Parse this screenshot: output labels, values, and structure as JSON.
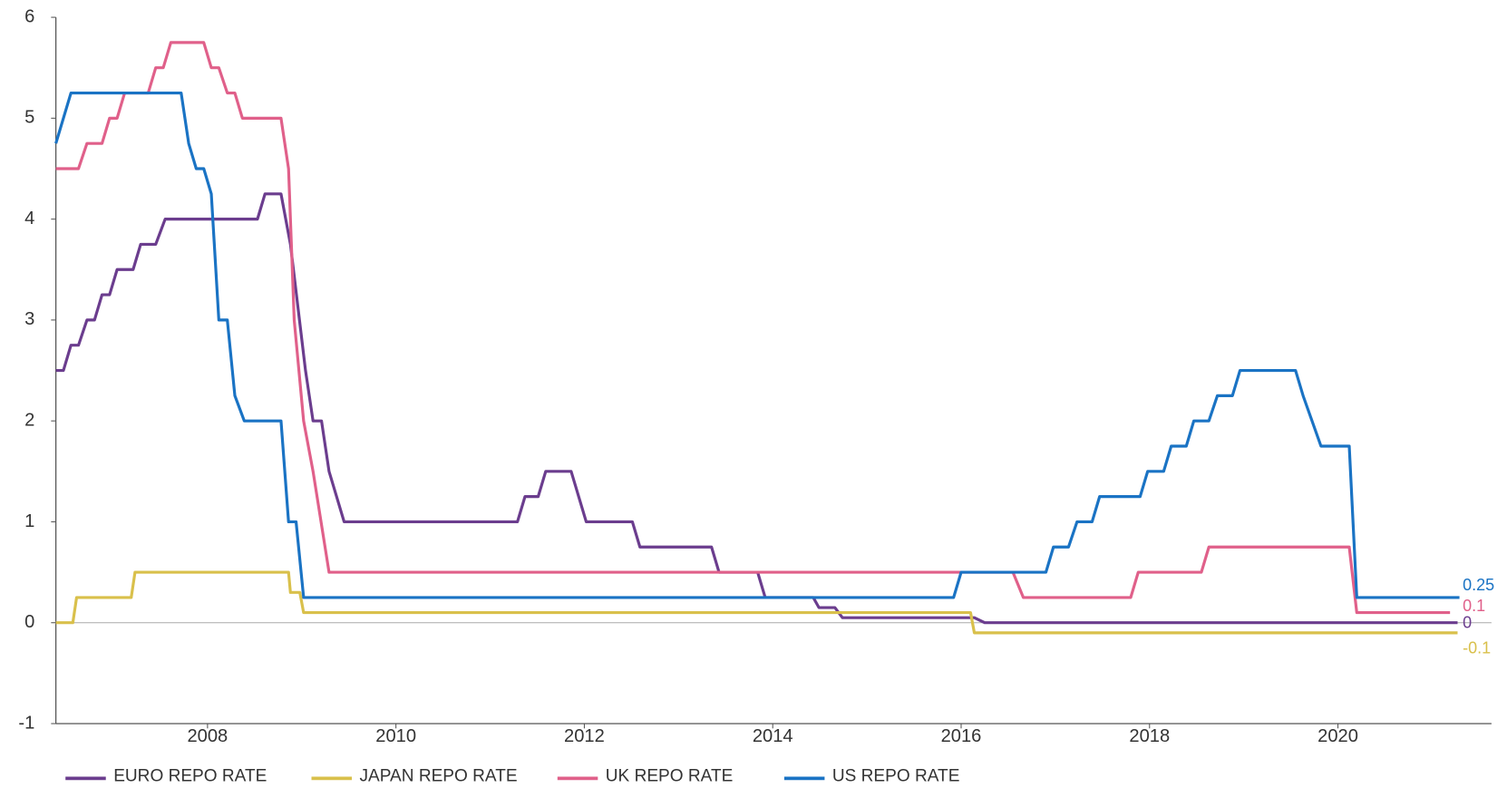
{
  "chart_data": {
    "type": "line",
    "xlim": [
      2006.39,
      2021.63
    ],
    "ylim": [
      -1,
      6
    ],
    "xticks": [
      2008,
      2010,
      2012,
      2014,
      2016,
      2018,
      2020
    ],
    "yticks": [
      -1,
      0,
      1,
      2,
      3,
      4,
      5,
      6
    ],
    "legend": "bottom",
    "series": [
      {
        "name": "EURO REPO RATE",
        "color": "#6b3d8e",
        "x": [
          2006.39,
          2006.47,
          2006.55,
          2006.63,
          2006.72,
          2006.8,
          2006.88,
          2006.96,
          2007.04,
          2007.21,
          2007.29,
          2007.45,
          2007.55,
          2008.53,
          2008.61,
          2008.78,
          2008.88,
          2009.04,
          2009.12,
          2009.21,
          2009.29,
          2009.45,
          2011.29,
          2011.37,
          2011.51,
          2011.59,
          2011.86,
          2012.02,
          2012.51,
          2012.59,
          2013.35,
          2013.43,
          2013.84,
          2013.92,
          2014.43,
          2014.49,
          2014.66,
          2014.74,
          2016.14,
          2016.25,
          2021.27
        ],
        "values": [
          2.5,
          2.5,
          2.75,
          2.75,
          3,
          3,
          3.25,
          3.25,
          3.5,
          3.5,
          3.75,
          3.75,
          4,
          4,
          4.25,
          4.25,
          3.75,
          2.5,
          2,
          2,
          1.5,
          1,
          1,
          1.25,
          1.25,
          1.5,
          1.5,
          1,
          1,
          0.75,
          0.75,
          0.5,
          0.5,
          0.25,
          0.25,
          0.15,
          0.15,
          0.05,
          0.05,
          0,
          0
        ]
      },
      {
        "name": "JAPAN REPO RATE",
        "color": "#d9c04b",
        "x": [
          2006.39,
          2006.57,
          2006.61,
          2007.19,
          2007.23,
          2008.86,
          2008.88,
          2008.98,
          2009.02,
          2016.1,
          2016.14,
          2021.27
        ],
        "values": [
          0,
          0,
          0.25,
          0.25,
          0.5,
          0.5,
          0.3,
          0.3,
          0.1,
          0.1,
          -0.1,
          -0.1
        ]
      },
      {
        "name": "UK REPO RATE",
        "color": "#e0608a",
        "x": [
          2006.39,
          2006.63,
          2006.72,
          2006.88,
          2006.96,
          2007.04,
          2007.12,
          2007.37,
          2007.45,
          2007.53,
          2007.61,
          2007.96,
          2008.04,
          2008.12,
          2008.21,
          2008.29,
          2008.37,
          2008.78,
          2008.86,
          2008.92,
          2009.02,
          2009.12,
          2009.29,
          2016.55,
          2016.66,
          2017.8,
          2017.88,
          2018.55,
          2018.63,
          2020.12,
          2020.2,
          2021.19
        ],
        "values": [
          4.5,
          4.5,
          4.75,
          4.75,
          5,
          5,
          5.25,
          5.25,
          5.5,
          5.5,
          5.75,
          5.75,
          5.5,
          5.5,
          5.25,
          5.25,
          5,
          5,
          4.5,
          3,
          2,
          1.5,
          0.5,
          0.5,
          0.25,
          0.25,
          0.5,
          0.5,
          0.75,
          0.75,
          0.1,
          0.1
        ]
      },
      {
        "name": "US REPO RATE",
        "color": "#1a73c4",
        "x": [
          2006.39,
          2006.55,
          2007.72,
          2007.8,
          2007.88,
          2007.96,
          2008.04,
          2008.12,
          2008.21,
          2008.29,
          2008.39,
          2008.78,
          2008.86,
          2008.94,
          2009.02,
          2015.92,
          2016.0,
          2016.9,
          2016.98,
          2017.14,
          2017.23,
          2017.39,
          2017.47,
          2017.9,
          2017.98,
          2018.15,
          2018.23,
          2018.39,
          2018.47,
          2018.63,
          2018.72,
          2018.88,
          2018.96,
          2019.55,
          2019.63,
          2019.82,
          2020.12,
          2020.2,
          2021.29
        ],
        "values": [
          4.75,
          5.25,
          5.25,
          4.75,
          4.5,
          4.5,
          4.25,
          3,
          3,
          2.25,
          2,
          2,
          1,
          1,
          0.25,
          0.25,
          0.5,
          0.5,
          0.75,
          0.75,
          1,
          1,
          1.25,
          1.25,
          1.5,
          1.5,
          1.75,
          1.75,
          2,
          2,
          2.25,
          2.25,
          2.5,
          2.5,
          2.25,
          1.75,
          1.75,
          0.25,
          0.25
        ]
      }
    ]
  }
}
